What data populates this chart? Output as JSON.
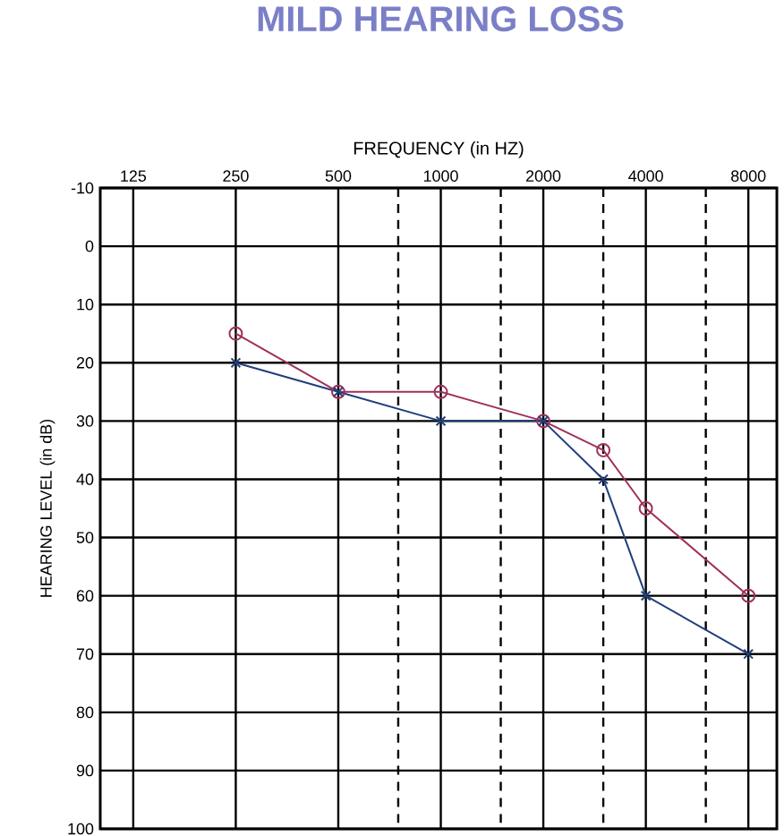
{
  "chart_data": {
    "type": "line",
    "title": "MILD HEARING LOSS",
    "xlabel": "FREQUENCY (in HZ)",
    "ylabel": "HEARING LEVEL (in dB)",
    "log": "x",
    "grid": true,
    "xlim": [
      100,
      9700
    ],
    "xticks": [
      125,
      250,
      500,
      1000,
      2000,
      4000,
      8000
    ],
    "ylim": [
      100,
      -10
    ],
    "yticks": [
      -10,
      0,
      10,
      20,
      30,
      40,
      50,
      60,
      70,
      80,
      90,
      100
    ],
    "ref_lines": [
      {
        "axis": "x",
        "value": 750,
        "line_style": "dashed"
      },
      {
        "axis": "x",
        "value": 1500,
        "line_style": "dashed"
      },
      {
        "axis": "x",
        "value": 3000,
        "line_style": "dashed"
      },
      {
        "axis": "x",
        "value": 6000,
        "line_style": "dashed"
      }
    ],
    "x": [
      250,
      500,
      1000,
      2000,
      3000,
      4000,
      8000
    ],
    "series": [
      {
        "color": "#a0305a",
        "marker": "circle",
        "values": [
          15,
          25,
          25,
          30,
          35,
          45,
          60
        ]
      },
      {
        "color": "#1f3f7a",
        "marker": "cross",
        "values": [
          20,
          25,
          30,
          30,
          40,
          60,
          70
        ]
      }
    ]
  }
}
